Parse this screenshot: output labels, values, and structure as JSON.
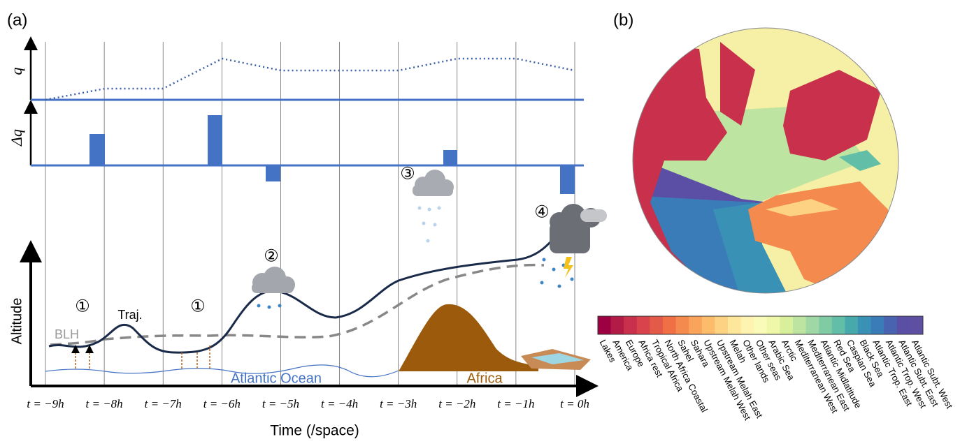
{
  "panel_a": {
    "label": "(a)",
    "q_axis": "q",
    "dq_axis": "Δq",
    "y_axis": "Altitude",
    "x_axis": "Time (/space)",
    "ticks": [
      "t = −9h",
      "t = −8h",
      "t = −7h",
      "t = −6h",
      "t = −5h",
      "t = −4h",
      "t = −3h",
      "t = −2h",
      "t = −1h",
      "t = 0h"
    ],
    "markers": [
      "①",
      "①",
      "②",
      "③",
      "④"
    ],
    "traj": "Traj.",
    "blh": "BLH",
    "ocean": "Atlantic Ocean",
    "land": "Africa"
  },
  "panel_b": {
    "label": "(b)",
    "colorbar": [
      {
        "name": "Lakes",
        "color": "#9e0142"
      },
      {
        "name": "America",
        "color": "#b31b47"
      },
      {
        "name": "Europe",
        "color": "#c8304b"
      },
      {
        "name": "Africa rest",
        "color": "#d9444c"
      },
      {
        "name": "Tropical Africa",
        "color": "#e45a48"
      },
      {
        "name": "North Africa Coastal",
        "color": "#f06f45"
      },
      {
        "name": "Sahel",
        "color": "#f58a4e"
      },
      {
        "name": "Sahara",
        "color": "#faa35a"
      },
      {
        "name": "Upstream Melah West",
        "color": "#fcbc6c"
      },
      {
        "name": "Upstream Melah East",
        "color": "#fdd383"
      },
      {
        "name": "Melah",
        "color": "#fee79a"
      },
      {
        "name": "Other lands",
        "color": "#fef3b0"
      },
      {
        "name": "Other seas",
        "color": "#fafbb8"
      },
      {
        "name": "Arabic Sea",
        "color": "#eef8a8"
      },
      {
        "name": "Arctic",
        "color": "#d8ef9c"
      },
      {
        "name": "Mediterranean West",
        "color": "#bde4a0"
      },
      {
        "name": "Mediterranean East",
        "color": "#9fd8a4"
      },
      {
        "name": "Atlantic Midlatitude",
        "color": "#80cba4"
      },
      {
        "name": "Red Sea",
        "color": "#62bea6"
      },
      {
        "name": "Caspian Sea",
        "color": "#48a9ad"
      },
      {
        "name": "Black Sea",
        "color": "#3992b5"
      },
      {
        "name": "Atlantic Trop. East",
        "color": "#3a7cb8"
      },
      {
        "name": "Atlantic Trop. West",
        "color": "#4a63b0"
      },
      {
        "name": "Atlantic Subt. East",
        "color": "#5b4ea5"
      },
      {
        "name": "Atlantic Subt. West",
        "color": "#5e4fa2"
      }
    ]
  }
}
